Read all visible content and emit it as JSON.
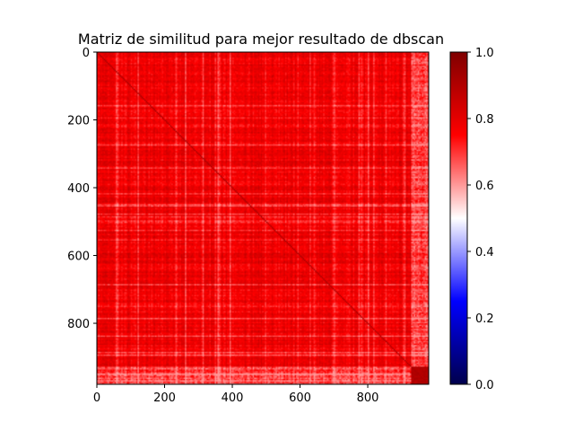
{
  "chart_data": {
    "type": "heatmap",
    "title": "Matriz de similitud para mejor resultado de dbscan",
    "xlabel": "",
    "ylabel": "",
    "matrix_size": 980,
    "xlim": [
      0,
      980
    ],
    "ylim": [
      980,
      0
    ],
    "x_ticks": [
      0,
      200,
      400,
      600,
      800
    ],
    "y_ticks": [
      0,
      200,
      400,
      600,
      800
    ],
    "colorbar": {
      "colormap": "seismic",
      "range": [
        0.0,
        1.0
      ],
      "ticks": [
        0.0,
        0.2,
        0.4,
        0.6,
        0.8,
        1.0
      ],
      "tick_labels": [
        "0.0",
        "0.2",
        "0.4",
        "0.6",
        "0.8",
        "1.0"
      ]
    },
    "value_summary": {
      "typical_similarity": 0.78,
      "min_visible": 0.6,
      "max_visible": 0.92,
      "high_similarity_block": [
        930,
        980
      ]
    },
    "grid": false
  }
}
